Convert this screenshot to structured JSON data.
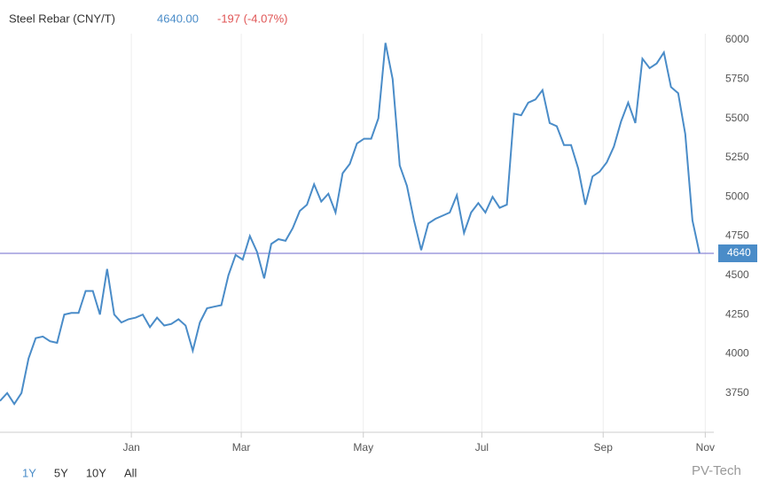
{
  "chart_data": {
    "type": "line",
    "title": "Steel Rebar (CNY/T)",
    "last_price": "4640.00",
    "change": "-197 (-4.07%)",
    "reference_line": 4640,
    "series": [
      {
        "name": "Steel Rebar",
        "color": "#4a8cc8",
        "values": [
          3700,
          3750,
          3680,
          3750,
          3970,
          4100,
          4110,
          4080,
          4070,
          4250,
          4260,
          4260,
          4400,
          4400,
          4250,
          4540,
          4250,
          4200,
          4220,
          4230,
          4250,
          4170,
          4230,
          4180,
          4190,
          4220,
          4180,
          4020,
          4200,
          4290,
          4300,
          4310,
          4500,
          4630,
          4600,
          4750,
          4650,
          4480,
          4700,
          4730,
          4720,
          4800,
          4910,
          4950,
          5080,
          4970,
          5020,
          4900,
          5150,
          5210,
          5340,
          5370,
          5370,
          5500,
          5980,
          5750,
          5200,
          5070,
          4850,
          4660,
          4830,
          4860,
          4880,
          4900,
          5010,
          4770,
          4900,
          4960,
          4900,
          5000,
          4930,
          4950,
          5530,
          5520,
          5600,
          5620,
          5680,
          5470,
          5450,
          5330,
          5330,
          5180,
          4950,
          5130,
          5160,
          5220,
          5320,
          5480,
          5600,
          5470,
          5880,
          5820,
          5850,
          5920,
          5700,
          5660,
          5400,
          4850,
          4640
        ]
      }
    ],
    "xlim": [
      0,
      100
    ],
    "xticks": [
      {
        "value": 18.4,
        "label": "Jan"
      },
      {
        "value": 33.8,
        "label": "Mar"
      },
      {
        "value": 50.9,
        "label": "May"
      },
      {
        "value": 67.5,
        "label": "Jul"
      },
      {
        "value": 84.5,
        "label": "Sep"
      },
      {
        "value": 98.8,
        "label": "Nov"
      }
    ],
    "ylim": [
      3500,
      6000
    ],
    "yticks": [
      3750,
      4000,
      4250,
      4500,
      4750,
      5000,
      5250,
      5500,
      5750,
      6000
    ],
    "grid": "x",
    "ranges": [
      "1Y",
      "5Y",
      "10Y",
      "All"
    ],
    "watermark": "PV-Tech"
  }
}
